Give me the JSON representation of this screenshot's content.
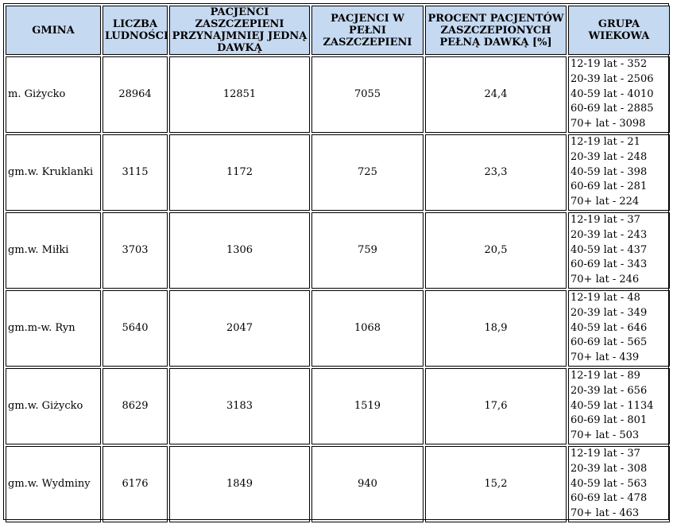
{
  "headers": {
    "gmina": "GMINA",
    "ludnosc": "LICZBA LUDNOŚCI",
    "jedna_dawka": "PACJENCI ZASZCZEPIENI PRZYNAJMNIEJ JEDNĄ DAWKĄ",
    "w_pelni": "PACJENCI W PEŁNI ZASZCZEPIENI",
    "procent": "PROCENT PACJENTÓW ZASZCZEPIONYCH PEŁNĄ DAWKĄ [%]",
    "grupa": "GRUPA WIEKOWA"
  },
  "rows": [
    {
      "gmina": "m. Giżycko",
      "ludnosc": "28964",
      "jedna_dawka": "12851",
      "w_pelni": "7055",
      "procent": "24,4",
      "grupy": [
        "12-19 lat - 352",
        "20-39 lat - 2506",
        "40-59 lat - 4010",
        "60-69 lat - 2885",
        "70+ lat - 3098"
      ]
    },
    {
      "gmina": "gm.w. Kruklanki",
      "ludnosc": "3115",
      "jedna_dawka": "1172",
      "w_pelni": "725",
      "procent": "23,3",
      "grupy": [
        "12-19 lat - 21",
        "20-39 lat - 248",
        "40-59 lat - 398",
        "60-69 lat - 281",
        "70+ lat - 224"
      ]
    },
    {
      "gmina": "gm.w. Miłki",
      "ludnosc": "3703",
      "jedna_dawka": "1306",
      "w_pelni": "759",
      "procent": "20,5",
      "grupy": [
        "12-19 lat - 37",
        "20-39 lat - 243",
        "40-59 lat - 437",
        "60-69 lat - 343",
        "70+ lat - 246"
      ]
    },
    {
      "gmina": "gm.m-w. Ryn",
      "ludnosc": "5640",
      "jedna_dawka": "2047",
      "w_pelni": "1068",
      "procent": "18,9",
      "grupy": [
        "12-19 lat - 48",
        "20-39 lat - 349",
        "40-59 lat - 646",
        "60-69 lat - 565",
        "70+ lat - 439"
      ]
    },
    {
      "gmina": "gm.w. Giżycko",
      "ludnosc": "8629",
      "jedna_dawka": "3183",
      "w_pelni": "1519",
      "procent": "17,6",
      "grupy": [
        "12-19 lat - 89",
        "20-39 lat - 656",
        "40-59 lat - 1134",
        "60-69 lat - 801",
        "70+ lat - 503"
      ]
    },
    {
      "gmina": "gm.w. Wydminy",
      "ludnosc": "6176",
      "jedna_dawka": "1849",
      "w_pelni": "940",
      "procent": "15,2",
      "grupy": [
        "12-19 lat - 37",
        "20-39 lat - 308",
        "40-59 lat - 563",
        "60-69 lat - 478",
        "70+ lat - 463"
      ]
    }
  ],
  "colors": {
    "header_bg": "#c5d9f1",
    "border": "#000000"
  }
}
